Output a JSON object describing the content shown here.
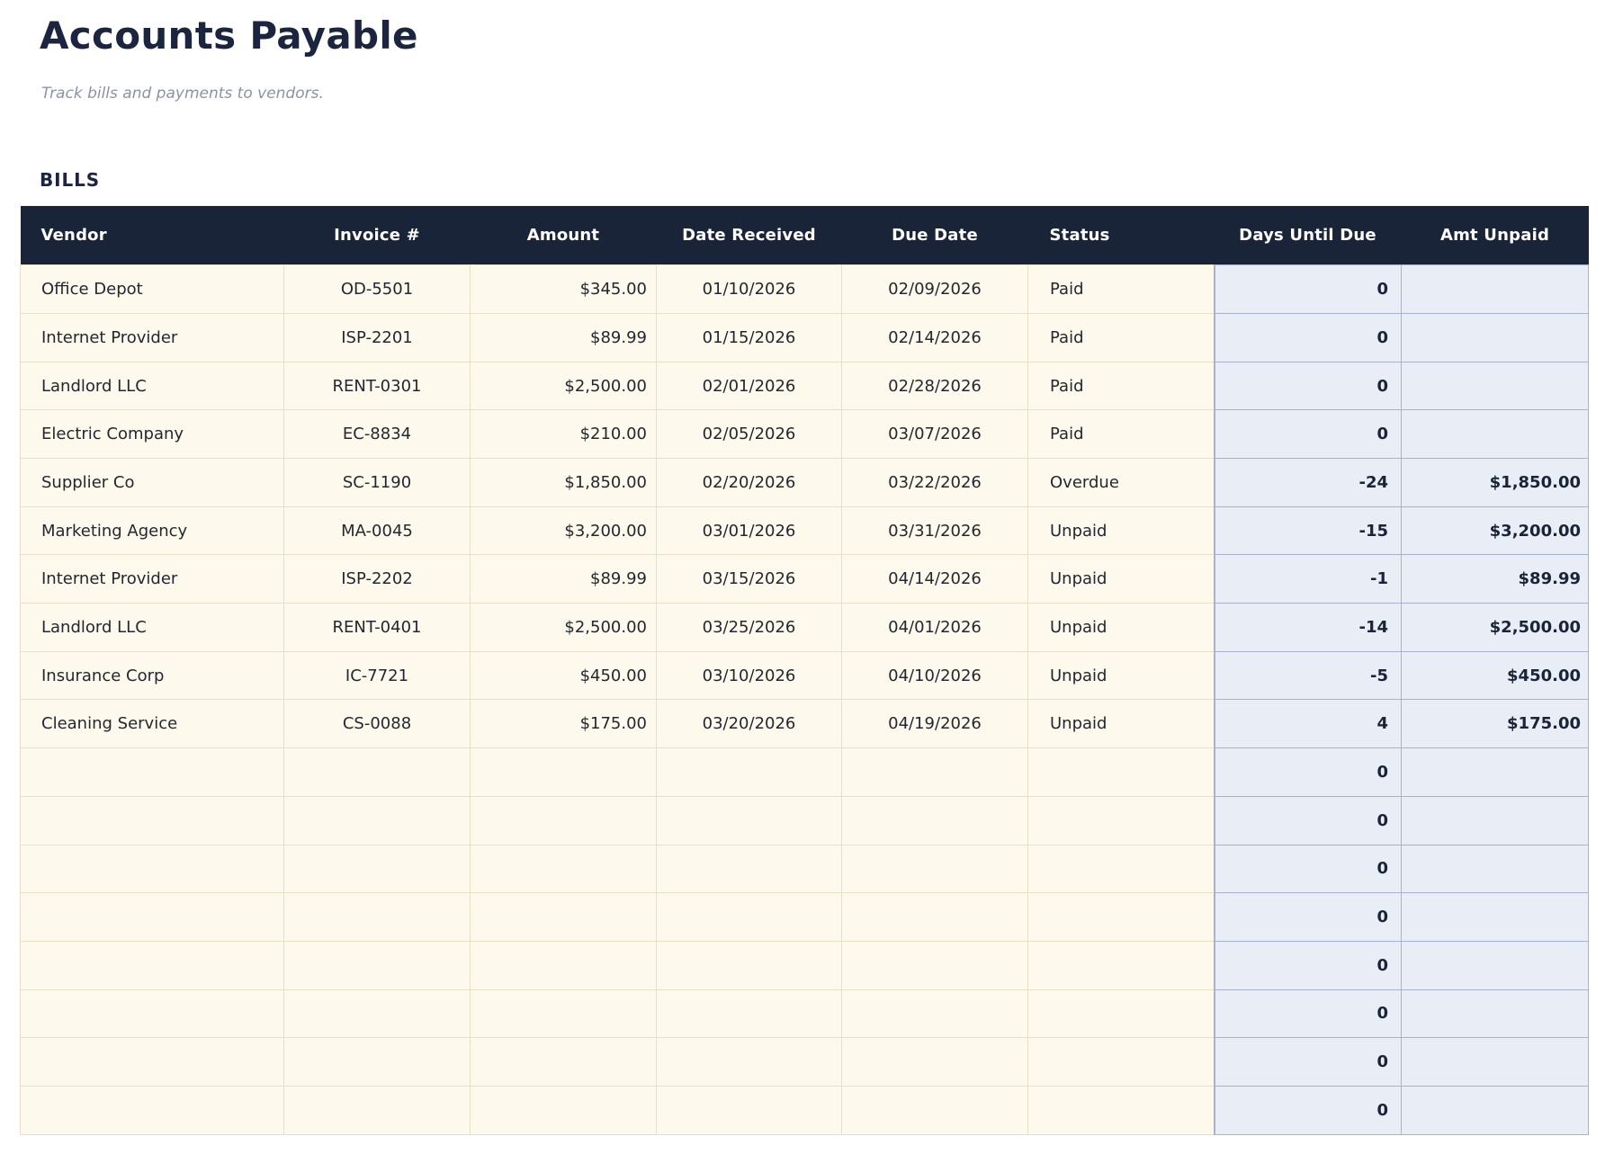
{
  "page": {
    "title": "Accounts Payable",
    "subtitle": "Track bills and payments to vendors."
  },
  "table": {
    "section_label": "BILLS",
    "columns": [
      "Vendor",
      "Invoice #",
      "Amount",
      "Date Received",
      "Due Date",
      "Status",
      "Days Until Due",
      "Amt Unpaid"
    ],
    "column_keys": [
      "vendor",
      "invoice-number",
      "amount",
      "date-received",
      "due-date",
      "status",
      "days-until-due",
      "amt-unpaid"
    ],
    "rows": [
      [
        "Office Depot",
        "OD-5501",
        "$345.00",
        "01/10/2026",
        "02/09/2026",
        "Paid",
        "0",
        ""
      ],
      [
        "Internet Provider",
        "ISP-2201",
        "$89.99",
        "01/15/2026",
        "02/14/2026",
        "Paid",
        "0",
        ""
      ],
      [
        "Landlord LLC",
        "RENT-0301",
        "$2,500.00",
        "02/01/2026",
        "02/28/2026",
        "Paid",
        "0",
        ""
      ],
      [
        "Electric Company",
        "EC-8834",
        "$210.00",
        "02/05/2026",
        "03/07/2026",
        "Paid",
        "0",
        ""
      ],
      [
        "Supplier Co",
        "SC-1190",
        "$1,850.00",
        "02/20/2026",
        "03/22/2026",
        "Overdue",
        "-24",
        "$1,850.00"
      ],
      [
        "Marketing Agency",
        "MA-0045",
        "$3,200.00",
        "03/01/2026",
        "03/31/2026",
        "Unpaid",
        "-15",
        "$3,200.00"
      ],
      [
        "Internet Provider",
        "ISP-2202",
        "$89.99",
        "03/15/2026",
        "04/14/2026",
        "Unpaid",
        "-1",
        "$89.99"
      ],
      [
        "Landlord LLC",
        "RENT-0401",
        "$2,500.00",
        "03/25/2026",
        "04/01/2026",
        "Unpaid",
        "-14",
        "$2,500.00"
      ],
      [
        "Insurance Corp",
        "IC-7721",
        "$450.00",
        "03/10/2026",
        "04/10/2026",
        "Unpaid",
        "-5",
        "$450.00"
      ],
      [
        "Cleaning Service",
        "CS-0088",
        "$175.00",
        "03/20/2026",
        "04/19/2026",
        "Unpaid",
        "4",
        "$175.00"
      ],
      [
        "",
        "",
        "",
        "",
        "",
        "",
        "0",
        ""
      ],
      [
        "",
        "",
        "",
        "",
        "",
        "",
        "0",
        ""
      ],
      [
        "",
        "",
        "",
        "",
        "",
        "",
        "0",
        ""
      ],
      [
        "",
        "",
        "",
        "",
        "",
        "",
        "0",
        ""
      ],
      [
        "",
        "",
        "",
        "",
        "",
        "",
        "0",
        ""
      ],
      [
        "",
        "",
        "",
        "",
        "",
        "",
        "0",
        ""
      ],
      [
        "",
        "",
        "",
        "",
        "",
        "",
        "0",
        ""
      ],
      [
        "",
        "",
        "",
        "",
        "",
        "",
        "0",
        ""
      ]
    ],
    "colors": {
      "header_bg": "#1a2438",
      "header_text": "#ffffff",
      "row_bg": "#fdf9ec",
      "row_border": "#e8e0c6",
      "calc_col_bg": "#e9edf6",
      "calc_col_border": "#a9b2cc",
      "accent_text": "#1b2540"
    }
  }
}
